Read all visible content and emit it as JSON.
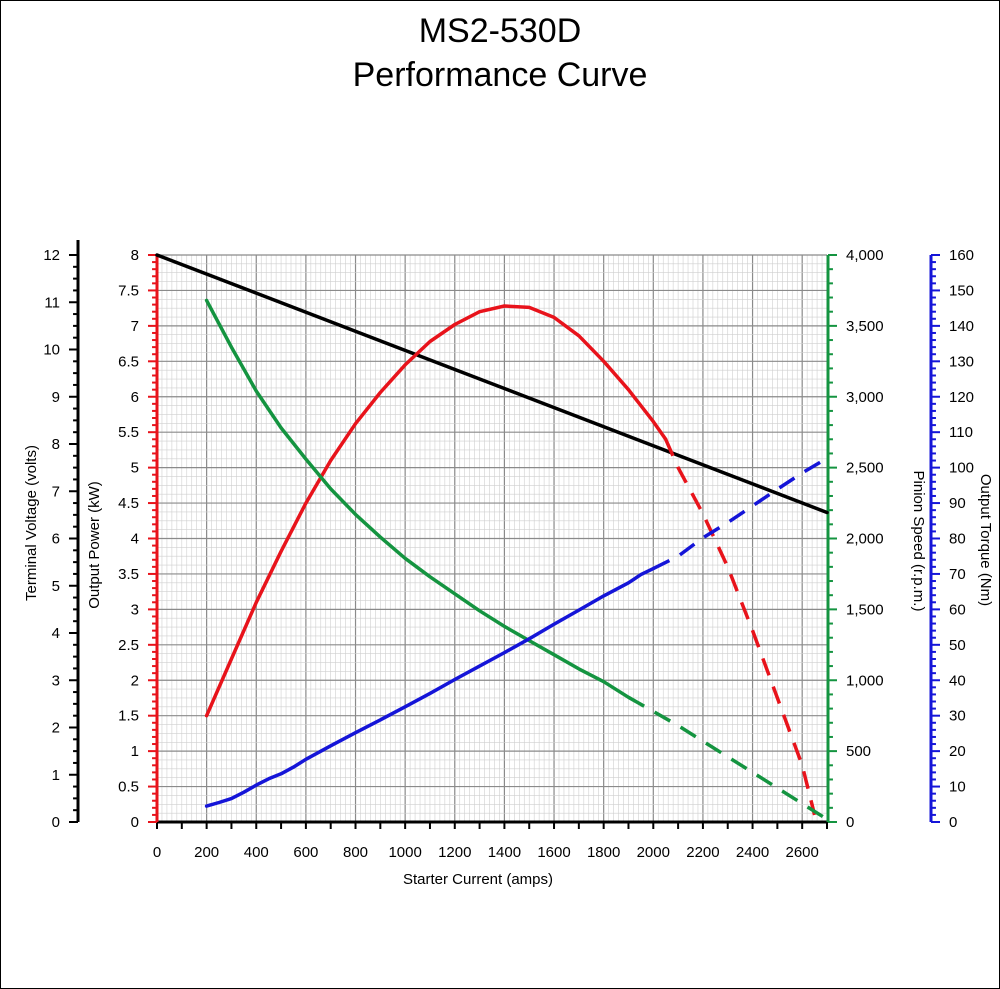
{
  "chart_data": {
    "type": "line",
    "title": "MS2-530D",
    "subtitle": "Performance Curve",
    "xlabel": "Starter Current  (amps)",
    "xlim": [
      0,
      2700
    ],
    "x_ticks": [
      "0",
      "200",
      "400",
      "600",
      "800",
      "1000",
      "1200",
      "1400",
      "1600",
      "1800",
      "2000",
      "2200",
      "2400",
      "2600"
    ],
    "grid": true,
    "colors": {
      "voltage": "#000000",
      "power": "#e8131b",
      "speed": "#149440",
      "torque": "#1515d8"
    },
    "axes": {
      "power": {
        "label": "Output Power (kW)",
        "range": [
          0,
          8
        ],
        "ticks": [
          "0",
          "0.5",
          "1",
          "1.5",
          "2",
          "2.5",
          "3",
          "3.5",
          "4",
          "4.5",
          "5",
          "5.5",
          "6",
          "6.5",
          "7",
          "7.5",
          "8"
        ],
        "color": "#e8131b",
        "side": "left"
      },
      "voltage": {
        "label": "Terminal Voltage (volts)",
        "range": [
          0,
          12
        ],
        "ticks": [
          "0",
          "1",
          "2",
          "3",
          "4",
          "5",
          "6",
          "7",
          "8",
          "9",
          "10",
          "11",
          "12"
        ],
        "color": "#000000",
        "side": "left"
      },
      "speed": {
        "label": "Pinion Speed (r.p.m.)",
        "range": [
          0,
          4000
        ],
        "ticks": [
          "0",
          "500",
          "1,000",
          "1,500",
          "2,000",
          "2,500",
          "3,000",
          "3,500",
          "4,000"
        ],
        "color": "#149440",
        "side": "right"
      },
      "torque": {
        "label": "Output Torque (Nm)",
        "range": [
          0,
          160
        ],
        "ticks": [
          "0",
          "10",
          "20",
          "30",
          "40",
          "50",
          "60",
          "70",
          "80",
          "90",
          "100",
          "110",
          "120",
          "130",
          "140",
          "150",
          "160"
        ],
        "color": "#1515d8",
        "side": "right"
      }
    },
    "series": [
      {
        "axis": "voltage",
        "solid": [
          [
            0,
            12.0
          ],
          [
            2700,
            6.55
          ]
        ],
        "dashed": []
      },
      {
        "axis": "power",
        "solid": [
          [
            200,
            1.5
          ],
          [
            300,
            2.3
          ],
          [
            400,
            3.1
          ],
          [
            500,
            3.82
          ],
          [
            600,
            4.5
          ],
          [
            700,
            5.1
          ],
          [
            800,
            5.62
          ],
          [
            900,
            6.06
          ],
          [
            1000,
            6.45
          ],
          [
            1100,
            6.78
          ],
          [
            1200,
            7.02
          ],
          [
            1300,
            7.2
          ],
          [
            1400,
            7.28
          ],
          [
            1500,
            7.26
          ],
          [
            1600,
            7.12
          ],
          [
            1700,
            6.86
          ],
          [
            1800,
            6.5
          ],
          [
            1900,
            6.1
          ],
          [
            2000,
            5.65
          ],
          [
            2050,
            5.4
          ]
        ],
        "dashed": [
          [
            2050,
            5.4
          ],
          [
            2100,
            5.0
          ],
          [
            2200,
            4.35
          ],
          [
            2300,
            3.6
          ],
          [
            2400,
            2.7
          ],
          [
            2500,
            1.75
          ],
          [
            2600,
            0.8
          ],
          [
            2650,
            0.1
          ]
        ]
      },
      {
        "axis": "speed",
        "solid": [
          [
            200,
            3680
          ],
          [
            300,
            3350
          ],
          [
            400,
            3040
          ],
          [
            500,
            2780
          ],
          [
            600,
            2560
          ],
          [
            700,
            2350
          ],
          [
            800,
            2170
          ],
          [
            900,
            2010
          ],
          [
            1000,
            1860
          ],
          [
            1100,
            1730
          ],
          [
            1200,
            1610
          ],
          [
            1300,
            1490
          ],
          [
            1400,
            1380
          ],
          [
            1500,
            1280
          ],
          [
            1600,
            1180
          ],
          [
            1700,
            1080
          ],
          [
            1800,
            990
          ],
          [
            1900,
            880
          ]
        ],
        "dashed": [
          [
            1900,
            880
          ],
          [
            2000,
            780
          ],
          [
            2100,
            680
          ],
          [
            2200,
            570
          ],
          [
            2300,
            460
          ],
          [
            2400,
            350
          ],
          [
            2500,
            240
          ],
          [
            2600,
            130
          ],
          [
            2700,
            20
          ]
        ]
      },
      {
        "axis": "torque",
        "solid": [
          [
            200,
            4.5
          ],
          [
            250,
            5.5
          ],
          [
            300,
            6.6
          ],
          [
            350,
            8.4
          ],
          [
            400,
            10.4
          ],
          [
            450,
            12.2
          ],
          [
            500,
            13.6
          ],
          [
            550,
            15.5
          ],
          [
            600,
            17.7
          ],
          [
            700,
            21.5
          ],
          [
            800,
            25.2
          ],
          [
            900,
            28.8
          ],
          [
            1000,
            32.5
          ],
          [
            1100,
            36.3
          ],
          [
            1200,
            40.2
          ],
          [
            1300,
            44.0
          ],
          [
            1400,
            47.8
          ],
          [
            1500,
            51.7
          ],
          [
            1600,
            55.8
          ],
          [
            1700,
            59.8
          ],
          [
            1800,
            63.8
          ],
          [
            1900,
            67.5
          ],
          [
            1950,
            69.8
          ],
          [
            2000,
            71.5
          ]
        ],
        "dashed": [
          [
            2000,
            71.5
          ],
          [
            2100,
            75.0
          ],
          [
            2200,
            80.2
          ],
          [
            2300,
            84.5
          ],
          [
            2400,
            89.2
          ],
          [
            2500,
            93.9
          ],
          [
            2600,
            98.5
          ],
          [
            2680,
            101.8
          ]
        ]
      }
    ]
  }
}
